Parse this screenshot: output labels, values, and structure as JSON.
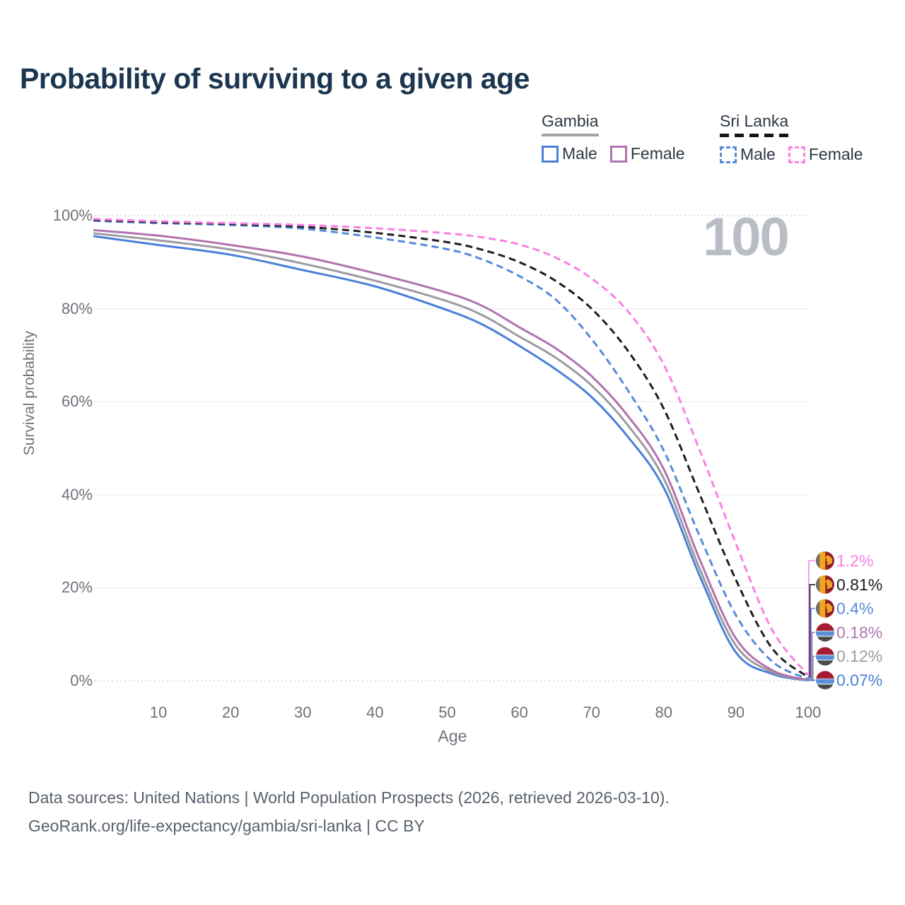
{
  "legend": {
    "groups": [
      {
        "country": "Gambia",
        "style": "solid",
        "items": [
          {
            "label": "Male",
            "color": "#4a80d8"
          },
          {
            "label": "Female",
            "color": "#b173ae"
          }
        ]
      },
      {
        "country": "Sri Lanka",
        "style": "dashed",
        "items": [
          {
            "label": "Male",
            "color": "#568bdb"
          },
          {
            "label": "Female",
            "color": "#fb80e5"
          }
        ]
      }
    ]
  },
  "chart_data": {
    "type": "line",
    "title": "Probability of surviving to a given age",
    "xlabel": "Age",
    "ylabel": "Survival probability",
    "age_indicator": "100",
    "xlim": [
      0,
      100
    ],
    "ylim": [
      0,
      100
    ],
    "grid": "horizontal",
    "x_ticks": [
      10,
      20,
      30,
      40,
      50,
      60,
      70,
      80,
      90,
      100
    ],
    "y_ticks": [
      0,
      20,
      40,
      60,
      80,
      100
    ],
    "y_tick_suffix": "%",
    "x": [
      1,
      10,
      20,
      30,
      40,
      50,
      55,
      60,
      65,
      70,
      75,
      80,
      85,
      90,
      95,
      100
    ],
    "series": [
      {
        "name": "Sri Lanka Female",
        "country": "Sri Lanka",
        "sex": "Female",
        "color": "#fb80e5",
        "dashed": true,
        "flag": "sri-lanka-flag-icon",
        "end_label": "1.2%",
        "values": [
          99.3,
          98.8,
          98.4,
          98.0,
          97.3,
          96.2,
          95.3,
          93.8,
          91.0,
          86.5,
          79.5,
          68.0,
          49.5,
          29.5,
          11.0,
          1.2
        ]
      },
      {
        "name": "Sri Lanka Both sexes",
        "country": "Sri Lanka",
        "sex": "Both",
        "color": "#1e1e22",
        "dashed": true,
        "flag": "sri-lanka-flag-icon",
        "end_label": "0.81%",
        "values": [
          99.1,
          98.6,
          98.2,
          97.6,
          96.3,
          94.3,
          92.6,
          90.0,
          86.0,
          80.0,
          71.0,
          58.5,
          40.0,
          21.7,
          7.0,
          0.81
        ]
      },
      {
        "name": "Sri Lanka Male",
        "country": "Sri Lanka",
        "sex": "Male",
        "color": "#568bdb",
        "dashed": true,
        "flag": "sri-lanka-flag-icon",
        "end_label": "0.4%",
        "values": [
          98.9,
          98.4,
          98.0,
          97.2,
          95.3,
          92.8,
          90.5,
          87.0,
          82.0,
          73.5,
          62.5,
          49.5,
          31.0,
          14.1,
          4.2,
          0.4
        ]
      },
      {
        "name": "Gambia Female",
        "country": "Gambia",
        "sex": "Female",
        "color": "#b173ae",
        "dashed": false,
        "flag": "gambia-flag-icon",
        "end_label": "0.18%",
        "values": [
          96.9,
          95.7,
          93.7,
          91.2,
          87.6,
          83.4,
          80.5,
          76.0,
          71.5,
          65.5,
          57.0,
          45.5,
          26.0,
          9.1,
          2.3,
          0.18
        ]
      },
      {
        "name": "Gambia Both sexes",
        "country": "Gambia",
        "sex": "Both",
        "color": "#9b9ba1",
        "dashed": false,
        "flag": "gambia-flag-icon",
        "end_label": "0.12%",
        "values": [
          96.2,
          94.7,
          92.7,
          89.7,
          86.0,
          81.6,
          78.5,
          74.0,
          69.5,
          63.5,
          55.0,
          43.5,
          24.0,
          7.6,
          1.9,
          0.12
        ]
      },
      {
        "name": "Gambia Male",
        "country": "Gambia",
        "sex": "Male",
        "color": "#4a80d8",
        "dashed": false,
        "flag": "gambia-flag-icon",
        "end_label": "0.07%",
        "values": [
          95.6,
          93.7,
          91.6,
          88.3,
          84.8,
          79.7,
          76.5,
          72.0,
          67.0,
          61.0,
          52.5,
          41.5,
          22.5,
          6.1,
          1.5,
          0.07
        ]
      }
    ]
  },
  "footer": {
    "line1": "Data sources: United Nations | World Population Prospects (2026, retrieved 2026-03-10).",
    "line2": "GeoRank.org/life-expectancy/gambia/sri-lanka | CC BY"
  }
}
